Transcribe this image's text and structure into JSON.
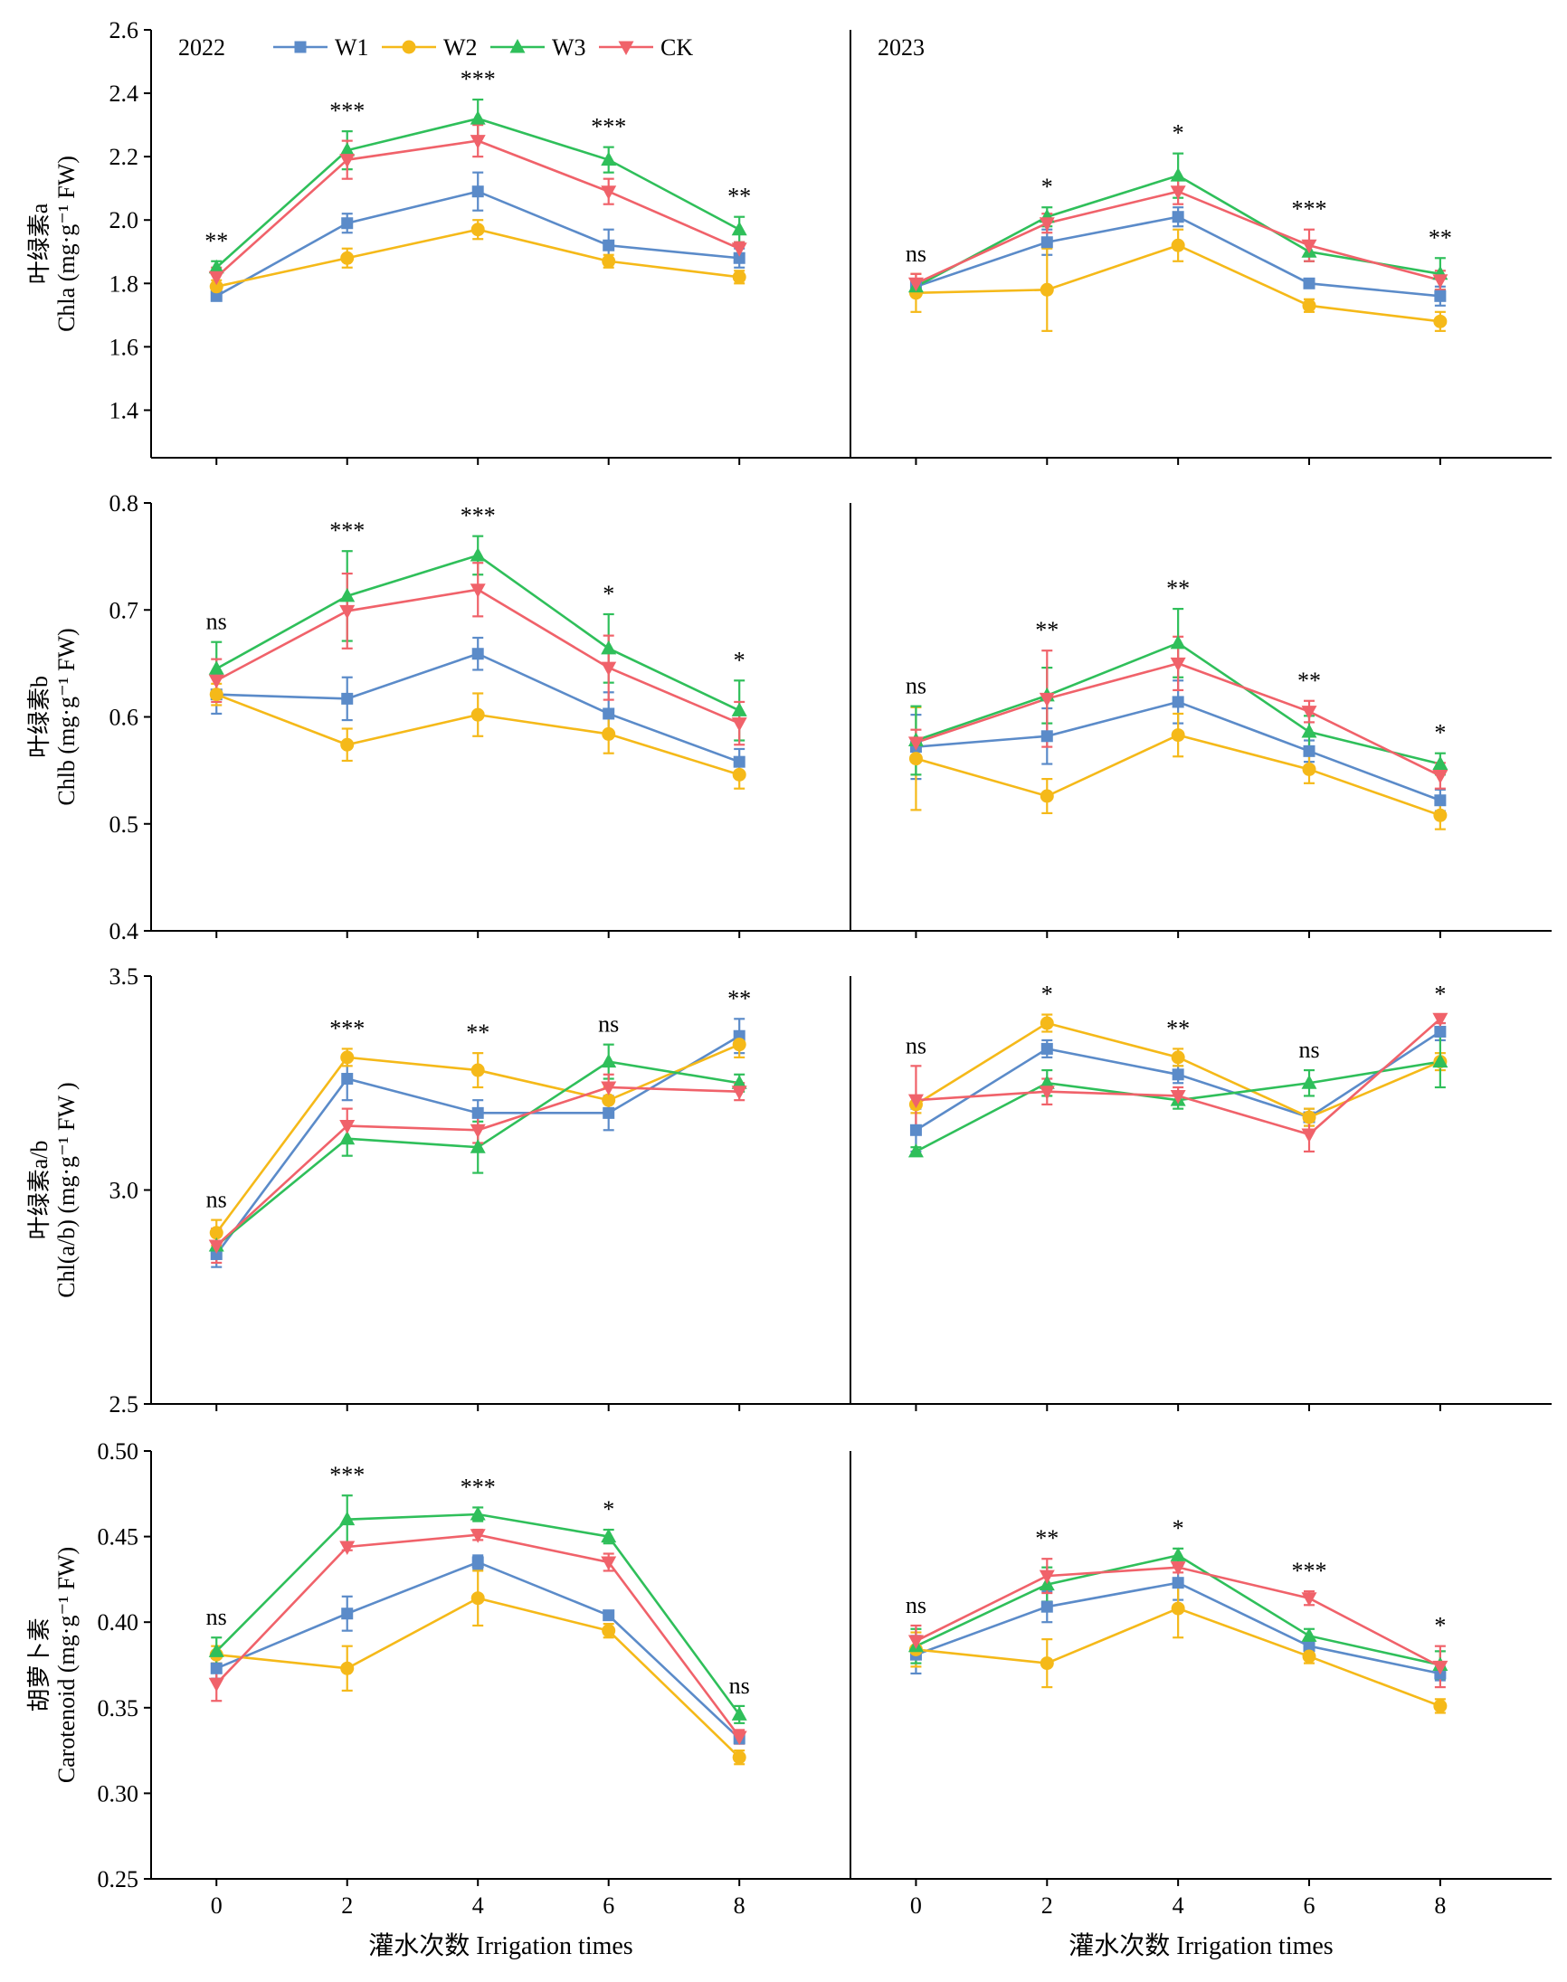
{
  "colors": {
    "W1": "#5b8bc9",
    "W2": "#f5b919",
    "W3": "#2fbf5a",
    "CK": "#f0626a"
  },
  "legend": {
    "placement": "top-left",
    "items": [
      {
        "key": "W1",
        "label": "W1",
        "marker": "square"
      },
      {
        "key": "W2",
        "label": "W2",
        "marker": "circle"
      },
      {
        "key": "W3",
        "label": "W3",
        "marker": "triangle-up"
      },
      {
        "key": "CK",
        "label": "CK",
        "marker": "triangle-down"
      }
    ]
  },
  "x_axis": {
    "label": "灌水次数 Irrigation times",
    "ticks": [
      0,
      2,
      4,
      6,
      8
    ],
    "xlim": [
      -1,
      9.7
    ]
  },
  "chart_data": [
    {
      "type": "line",
      "title": "",
      "panel": "chla-2022",
      "year_label": "2022",
      "ylabel_cn": "叶绿素a",
      "ylabel_en": "Chla (mg·g⁻¹ FW)",
      "ylim": [
        1.25,
        2.6
      ],
      "yticks": [
        "1.4",
        "1.6",
        "1.8",
        "2.0",
        "2.2",
        "2.4",
        "2.6"
      ],
      "x": [
        0,
        2,
        4,
        6,
        8
      ],
      "series": [
        {
          "name": "W1",
          "values": [
            1.76,
            1.99,
            2.09,
            1.92,
            1.88
          ],
          "errors": [
            0.01,
            0.03,
            0.06,
            0.05,
            0.03
          ]
        },
        {
          "name": "W2",
          "values": [
            1.79,
            1.88,
            1.97,
            1.87,
            1.82
          ],
          "errors": [
            0.02,
            0.03,
            0.03,
            0.02,
            0.02
          ]
        },
        {
          "name": "W3",
          "values": [
            1.85,
            2.22,
            2.32,
            2.19,
            1.97
          ],
          "errors": [
            0.02,
            0.06,
            0.06,
            0.04,
            0.04
          ]
        },
        {
          "name": "CK",
          "values": [
            1.82,
            2.19,
            2.25,
            2.09,
            1.91
          ],
          "errors": [
            0.03,
            0.06,
            0.05,
            0.04,
            0.02
          ]
        }
      ],
      "annotations": [
        "**",
        "***",
        "***",
        "***",
        "**"
      ]
    },
    {
      "type": "line",
      "title": "",
      "panel": "chla-2023",
      "year_label": "2023",
      "ylim": [
        1.25,
        2.6
      ],
      "x": [
        0,
        2,
        4,
        6,
        8
      ],
      "series": [
        {
          "name": "W1",
          "values": [
            1.79,
            1.93,
            2.01,
            1.8,
            1.76
          ],
          "errors": [
            0.02,
            0.04,
            0.03,
            0.01,
            0.03
          ]
        },
        {
          "name": "W2",
          "values": [
            1.77,
            1.78,
            1.92,
            1.73,
            1.68
          ],
          "errors": [
            0.06,
            0.13,
            0.05,
            0.02,
            0.03
          ]
        },
        {
          "name": "W3",
          "values": [
            1.79,
            2.01,
            2.14,
            1.9,
            1.83
          ],
          "errors": [
            0.02,
            0.03,
            0.07,
            0.03,
            0.05
          ]
        },
        {
          "name": "CK",
          "values": [
            1.8,
            1.99,
            2.09,
            1.92,
            1.81
          ],
          "errors": [
            0.03,
            0.03,
            0.04,
            0.05,
            0.03
          ]
        }
      ],
      "annotations": [
        "ns",
        "*",
        "*",
        "***",
        "**"
      ]
    },
    {
      "type": "line",
      "title": "",
      "panel": "chlb-2022",
      "ylabel_cn": "叶绿素b",
      "ylabel_en": "Chlb (mg·g⁻¹ FW)",
      "ylim": [
        0.4,
        0.8
      ],
      "yticks": [
        "0.4",
        "0.5",
        "0.6",
        "0.7",
        "0.8"
      ],
      "x": [
        0,
        2,
        4,
        6,
        8
      ],
      "series": [
        {
          "name": "W1",
          "values": [
            0.621,
            0.617,
            0.659,
            0.603,
            0.558
          ],
          "errors": [
            0.018,
            0.02,
            0.015,
            0.02,
            0.012
          ]
        },
        {
          "name": "W2",
          "values": [
            0.621,
            0.574,
            0.602,
            0.584,
            0.546
          ],
          "errors": [
            0.01,
            0.015,
            0.02,
            0.018,
            0.013
          ]
        },
        {
          "name": "W3",
          "values": [
            0.645,
            0.713,
            0.751,
            0.664,
            0.606
          ],
          "errors": [
            0.025,
            0.042,
            0.018,
            0.032,
            0.028
          ]
        },
        {
          "name": "CK",
          "values": [
            0.634,
            0.699,
            0.719,
            0.646,
            0.594
          ],
          "errors": [
            0.02,
            0.035,
            0.025,
            0.03,
            0.02
          ]
        }
      ],
      "annotations": [
        "ns",
        "***",
        "***",
        "*",
        "*"
      ]
    },
    {
      "type": "line",
      "title": "",
      "panel": "chlb-2023",
      "ylim": [
        0.4,
        0.8
      ],
      "x": [
        0,
        2,
        4,
        6,
        8
      ],
      "series": [
        {
          "name": "W1",
          "values": [
            0.572,
            0.582,
            0.614,
            0.568,
            0.522
          ],
          "errors": [
            0.03,
            0.026,
            0.02,
            0.01,
            0.01
          ]
        },
        {
          "name": "W2",
          "values": [
            0.561,
            0.526,
            0.583,
            0.551,
            0.508
          ],
          "errors": [
            0.048,
            0.016,
            0.02,
            0.013,
            0.013
          ]
        },
        {
          "name": "W3",
          "values": [
            0.578,
            0.62,
            0.669,
            0.586,
            0.556
          ],
          "errors": [
            0.032,
            0.026,
            0.032,
            0.015,
            0.01
          ]
        },
        {
          "name": "CK",
          "values": [
            0.576,
            0.617,
            0.65,
            0.605,
            0.545
          ],
          "errors": [
            0.012,
            0.045,
            0.025,
            0.01,
            0.012
          ]
        }
      ],
      "annotations": [
        "ns",
        "**",
        "**",
        "**",
        "*"
      ]
    },
    {
      "type": "line",
      "title": "",
      "panel": "ratio-2022",
      "ylabel_cn": "叶绿素a/b",
      "ylabel_en": "Chl(a/b) (mg·g⁻¹ FW )",
      "ylim": [
        2.5,
        3.5
      ],
      "yticks": [
        "2.5",
        "3.0",
        "3.5"
      ],
      "x": [
        0,
        2,
        4,
        6,
        8
      ],
      "series": [
        {
          "name": "W1",
          "values": [
            2.85,
            3.26,
            3.18,
            3.18,
            3.36
          ],
          "errors": [
            0.03,
            0.05,
            0.03,
            0.04,
            0.04
          ]
        },
        {
          "name": "W2",
          "values": [
            2.9,
            3.31,
            3.28,
            3.21,
            3.34
          ],
          "errors": [
            0.03,
            0.02,
            0.04,
            0.03,
            0.03
          ]
        },
        {
          "name": "W3",
          "values": [
            2.87,
            3.12,
            3.1,
            3.3,
            3.25
          ],
          "errors": [
            0.03,
            0.04,
            0.06,
            0.04,
            0.02
          ]
        },
        {
          "name": "CK",
          "values": [
            2.87,
            3.15,
            3.14,
            3.24,
            3.23
          ],
          "errors": [
            0.04,
            0.04,
            0.03,
            0.03,
            0.02
          ]
        }
      ],
      "annotations": [
        "ns",
        "***",
        "**",
        "ns",
        "**"
      ]
    },
    {
      "type": "line",
      "title": "",
      "panel": "ratio-2023",
      "ylim": [
        2.5,
        3.5
      ],
      "x": [
        0,
        2,
        4,
        6,
        8
      ],
      "series": [
        {
          "name": "W1",
          "values": [
            3.14,
            3.33,
            3.27,
            3.17,
            3.37
          ],
          "errors": [
            0.05,
            0.02,
            0.02,
            0.02,
            0.02
          ]
        },
        {
          "name": "W2",
          "values": [
            3.2,
            3.39,
            3.31,
            3.17,
            3.3
          ],
          "errors": [
            0.02,
            0.02,
            0.02,
            0.02,
            0.02
          ]
        },
        {
          "name": "W3",
          "values": [
            3.09,
            3.25,
            3.21,
            3.25,
            3.3
          ],
          "errors": [
            0.01,
            0.03,
            0.02,
            0.03,
            0.06
          ]
        },
        {
          "name": "CK",
          "values": [
            3.21,
            3.23,
            3.22,
            3.13,
            3.4
          ],
          "errors": [
            0.08,
            0.03,
            0.02,
            0.04,
            0.01
          ]
        }
      ],
      "annotations": [
        "ns",
        "*",
        "**",
        "ns",
        "*"
      ]
    },
    {
      "type": "line",
      "title": "",
      "panel": "car-2022",
      "ylabel_cn": "胡萝卜素",
      "ylabel_en": "Carotenoid (mg·g⁻¹ FW)",
      "ylim": [
        0.25,
        0.5
      ],
      "yticks": [
        "0.25",
        "0.30",
        "0.35",
        "0.40",
        "0.45",
        "0.50"
      ],
      "x": [
        0,
        2,
        4,
        6,
        8
      ],
      "series": [
        {
          "name": "W1",
          "values": [
            0.373,
            0.405,
            0.435,
            0.404,
            0.332
          ],
          "errors": [
            0.006,
            0.01,
            0.004,
            0.002,
            0.003
          ]
        },
        {
          "name": "W2",
          "values": [
            0.381,
            0.373,
            0.414,
            0.395,
            0.321
          ],
          "errors": [
            0.005,
            0.013,
            0.016,
            0.004,
            0.004
          ]
        },
        {
          "name": "W3",
          "values": [
            0.383,
            0.46,
            0.463,
            0.45,
            0.346
          ],
          "errors": [
            0.008,
            0.014,
            0.004,
            0.004,
            0.005
          ]
        },
        {
          "name": "CK",
          "values": [
            0.364,
            0.444,
            0.451,
            0.435,
            0.333
          ],
          "errors": [
            0.01,
            0.002,
            0.003,
            0.005,
            0.004
          ]
        }
      ],
      "annotations": [
        "ns",
        "***",
        "***",
        "*",
        "ns"
      ]
    },
    {
      "type": "line",
      "title": "",
      "panel": "car-2023",
      "ylim": [
        0.25,
        0.5
      ],
      "x": [
        0,
        2,
        4,
        6,
        8
      ],
      "series": [
        {
          "name": "W1",
          "values": [
            0.381,
            0.409,
            0.423,
            0.386,
            0.37
          ],
          "errors": [
            0.011,
            0.009,
            0.01,
            0.004,
            0.004
          ]
        },
        {
          "name": "W2",
          "values": [
            0.384,
            0.376,
            0.408,
            0.38,
            0.351
          ],
          "errors": [
            0.01,
            0.014,
            0.017,
            0.004,
            0.004
          ]
        },
        {
          "name": "W3",
          "values": [
            0.386,
            0.422,
            0.439,
            0.392,
            0.375
          ],
          "errors": [
            0.01,
            0.01,
            0.004,
            0.004,
            0.008
          ]
        },
        {
          "name": "CK",
          "values": [
            0.389,
            0.427,
            0.432,
            0.414,
            0.374
          ],
          "errors": [
            0.009,
            0.01,
            0.003,
            0.004,
            0.012
          ]
        }
      ],
      "annotations": [
        "ns",
        "**",
        "*",
        "***",
        "*"
      ]
    }
  ]
}
